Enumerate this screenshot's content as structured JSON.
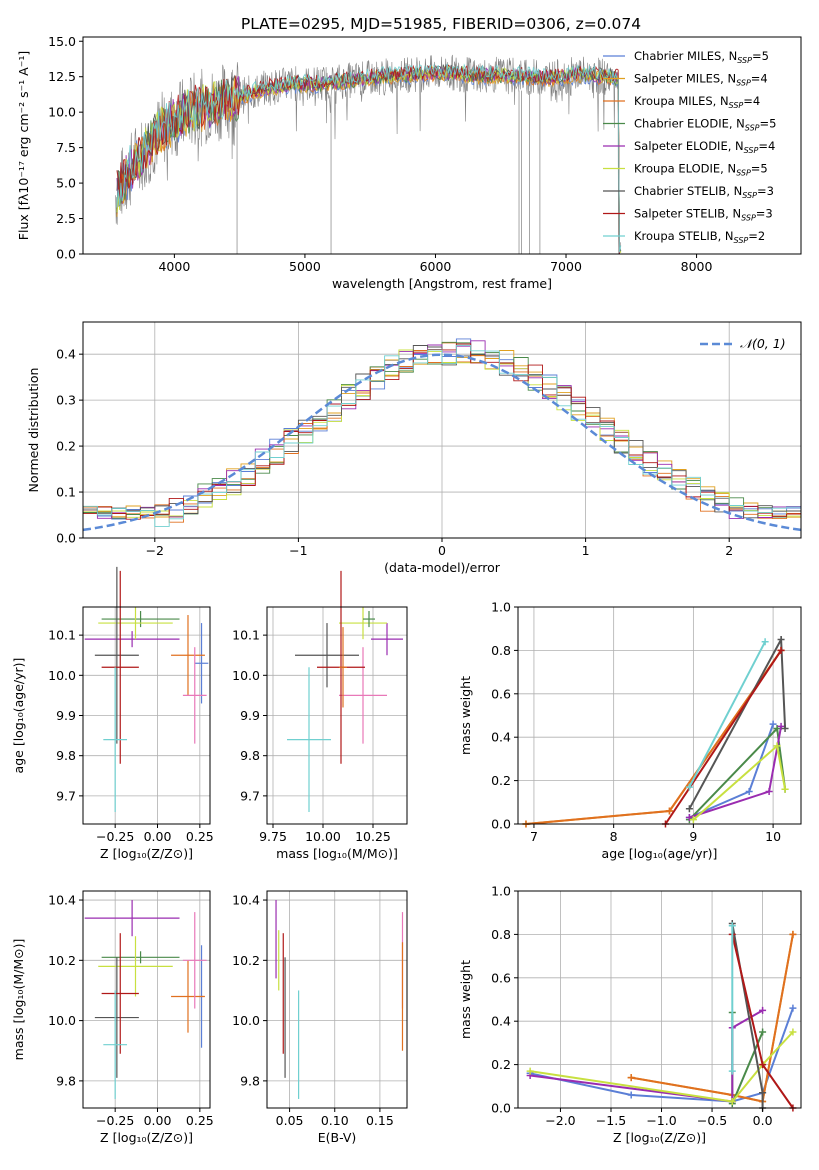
{
  "title": "PLATE=0295, MJD=51985, FIBERID=0306, z=0.074",
  "colors": {
    "Chabrier MILES": "#5b7fd6",
    "Salpeter MILES": "#e0a020",
    "Kroupa MILES": "#e07020",
    "Chabrier ELODIE": "#4a8a4a",
    "Salpeter ELODIE": "#9a2cb0",
    "Kroupa ELODIE": "#c8e040",
    "Chabrier STELIB": "#555555",
    "Salpeter STELIB": "#b01818",
    "Kroupa STELIB": "#70d0d0",
    "Kroupa ELODIE ticks": "#e878b8",
    "data": "#808080",
    "gaussian": "#5b8ad6"
  },
  "chart_data": [
    {
      "id": "spectrum",
      "type": "line",
      "xlabel": "wavelength [Angstrom, rest frame]",
      "ylabel": "Flux [fλ10⁻¹⁷ erg cm⁻² s⁻¹ A⁻¹]",
      "xlim": [
        3300,
        8800
      ],
      "ylim": [
        0,
        15.3
      ],
      "xticks": [
        4000,
        5000,
        6000,
        7000,
        8000
      ],
      "yticks": [
        "0.0",
        "2.5",
        "5.0",
        "7.5",
        "10.0",
        "12.5",
        "15.0"
      ],
      "legend_position": "right",
      "series": [
        {
          "name": "Chabrier MILES, N",
          "sub": "SSP",
          "suffix": "=5"
        },
        {
          "name": "Salpeter MILES, N",
          "sub": "SSP",
          "suffix": "=4"
        },
        {
          "name": "Kroupa MILES, N",
          "sub": "SSP",
          "suffix": "=4"
        },
        {
          "name": "Chabrier ELODIE, N",
          "sub": "SSP",
          "suffix": "=5"
        },
        {
          "name": "Salpeter ELODIE, N",
          "sub": "SSP",
          "suffix": "=4"
        },
        {
          "name": "Kroupa ELODIE, N",
          "sub": "SSP",
          "suffix": "=5"
        },
        {
          "name": "Chabrier STELIB, N",
          "sub": "SSP",
          "suffix": "=3"
        },
        {
          "name": "Salpeter STELIB, N",
          "sub": "SSP",
          "suffix": "=3"
        },
        {
          "name": "Kroupa STELIB, N",
          "sub": "SSP",
          "suffix": "=2"
        }
      ],
      "continuum": {
        "x": [
          3550,
          3700,
          3900,
          4100,
          4300,
          4500,
          4700,
          4900,
          5100,
          5300,
          5500,
          5700,
          5900,
          6100,
          6300,
          6500,
          6700,
          6900,
          7100,
          7300,
          7400
        ],
        "y": [
          4.2,
          6.5,
          8.8,
          10.0,
          10.6,
          11.1,
          11.7,
          12.0,
          12.0,
          12.2,
          12.4,
          12.6,
          12.7,
          12.8,
          12.6,
          12.6,
          12.5,
          12.4,
          12.7,
          12.5,
          12.4
        ]
      }
    },
    {
      "id": "residual-histogram",
      "type": "histogram",
      "xlabel": "(data-model)/error",
      "ylabel": "Normed distribution",
      "xlim": [
        -2.5,
        2.5
      ],
      "ylim": [
        0,
        0.47
      ],
      "xticks": [
        "−2",
        "−1",
        "0",
        "1",
        "2"
      ],
      "yticks": [
        "0.0",
        "0.1",
        "0.2",
        "0.3",
        "0.4"
      ],
      "grid": true,
      "legend": "𝒩(0, 1)",
      "legend_position": "top-right",
      "bin_width": 0.1
    },
    {
      "id": "age-vs-Z",
      "type": "errorbar",
      "xlabel": "Z [log₁₀(Z/Z⊙)]",
      "ylabel": "age [log₁₀(age/yr)]",
      "xlim": [
        -0.44,
        0.31
      ],
      "ylim": [
        9.63,
        10.17
      ],
      "xticks": [
        "−0.25",
        "0.00",
        "0.25"
      ],
      "yticks": [
        "9.7",
        "9.8",
        "9.9",
        "10.0",
        "10.1"
      ]
    },
    {
      "id": "age-vs-mass",
      "type": "errorbar",
      "xlabel": "mass [log₁₀(M/M⊙)]",
      "ylabel": "",
      "xlim": [
        9.72,
        10.42
      ],
      "ylim": [
        9.63,
        10.17
      ],
      "xticks": [
        "9.75",
        "10.00",
        "10.25"
      ],
      "yticks": [
        "9.7",
        "9.8",
        "9.9",
        "10.0",
        "10.1"
      ]
    },
    {
      "id": "weight-vs-age",
      "type": "line",
      "xlabel": "age [log₁₀(age/yr)]",
      "ylabel": "mass weight",
      "xlim": [
        6.8,
        10.35
      ],
      "ylim": [
        0,
        1
      ],
      "xticks": [
        "7",
        "8",
        "9",
        "10"
      ],
      "yticks": [
        "0.0",
        "0.2",
        "0.4",
        "0.6",
        "0.8",
        "1.0"
      ],
      "grid": true,
      "series": [
        {
          "name": "Chabrier MILES",
          "x": [
            8.95,
            9.7,
            10.0
          ],
          "y": [
            0.03,
            0.15,
            0.46
          ]
        },
        {
          "name": "Salpeter MILES",
          "x": [
            6.9,
            8.7,
            10.1
          ],
          "y": [
            0.0,
            0.06,
            0.8
          ]
        },
        {
          "name": "Kroupa MILES",
          "x": [
            6.9,
            8.7,
            10.1
          ],
          "y": [
            0.0,
            0.06,
            0.8
          ]
        },
        {
          "name": "Chabrier ELODIE",
          "x": [
            8.95,
            10.05,
            10.15
          ],
          "y": [
            0.02,
            0.44,
            0.16
          ]
        },
        {
          "name": "Salpeter ELODIE",
          "x": [
            8.95,
            9.95,
            10.1
          ],
          "y": [
            0.03,
            0.15,
            0.45
          ]
        },
        {
          "name": "Kroupa ELODIE",
          "x": [
            9.0,
            10.05,
            10.15
          ],
          "y": [
            0.02,
            0.36,
            0.16
          ]
        },
        {
          "name": "Chabrier STELIB",
          "x": [
            8.95,
            10.1,
            10.15
          ],
          "y": [
            0.07,
            0.85,
            0.44
          ]
        },
        {
          "name": "Salpeter STELIB",
          "x": [
            8.65,
            10.1
          ],
          "y": [
            0.0,
            0.8
          ]
        },
        {
          "name": "Kroupa STELIB",
          "x": [
            8.95,
            9.9
          ],
          "y": [
            0.17,
            0.84
          ]
        }
      ]
    },
    {
      "id": "mass-vs-Z",
      "type": "errorbar",
      "xlabel": "Z [log₁₀(Z/Z⊙)]",
      "ylabel": "mass [log₁₀(M/M⊙)]",
      "xlim": [
        -0.44,
        0.31
      ],
      "ylim": [
        9.71,
        10.43
      ],
      "xticks": [
        "−0.25",
        "0.00",
        "0.25"
      ],
      "yticks": [
        "9.8",
        "10.0",
        "10.2",
        "10.4"
      ]
    },
    {
      "id": "mass-vs-EBV",
      "type": "errorbar",
      "xlabel": "E(B-V)",
      "ylabel": "",
      "xlim": [
        0.025,
        0.18
      ],
      "ylim": [
        9.71,
        10.43
      ],
      "xticks": [
        "0.05",
        "0.10",
        "0.15"
      ],
      "yticks": [
        "9.8",
        "10.0",
        "10.2",
        "10.4"
      ]
    },
    {
      "id": "weight-vs-Z",
      "type": "line",
      "xlabel": "Z [log₁₀(Z/Z⊙)]",
      "ylabel": "mass weight",
      "xlim": [
        -2.42,
        0.38
      ],
      "ylim": [
        0,
        1
      ],
      "xticks": [
        "−2.0",
        "−1.5",
        "−1.0",
        "−0.5",
        "0.0"
      ],
      "yticks": [
        "0.0",
        "0.2",
        "0.4",
        "0.6",
        "0.8",
        "1.0"
      ],
      "grid": true,
      "series": [
        {
          "name": "Chabrier MILES",
          "x": [
            -2.3,
            -1.3,
            -0.3,
            0.0,
            0.3
          ],
          "y": [
            0.16,
            0.06,
            0.03,
            0.07,
            0.46
          ]
        },
        {
          "name": "Salpeter MILES",
          "x": [
            -1.3,
            -0.3,
            0.0,
            0.3
          ],
          "y": [
            0.14,
            0.06,
            0.03,
            0.8
          ]
        },
        {
          "name": "Kroupa MILES",
          "x": [
            -1.3,
            -0.3,
            0.0,
            0.3
          ],
          "y": [
            0.14,
            0.06,
            0.03,
            0.8
          ]
        },
        {
          "name": "Chabrier ELODIE",
          "x": [
            -0.3,
            -0.3,
            0.0
          ],
          "y": [
            0.44,
            0.02,
            0.35
          ]
        },
        {
          "name": "Salpeter ELODIE",
          "x": [
            -2.3,
            -0.3,
            -0.3,
            0.0
          ],
          "y": [
            0.15,
            0.03,
            0.37,
            0.45
          ]
        },
        {
          "name": "Kroupa ELODIE",
          "x": [
            -2.3,
            -0.3,
            0.0,
            0.3
          ],
          "y": [
            0.17,
            0.03,
            0.2,
            0.35
          ]
        },
        {
          "name": "Chabrier STELIB",
          "x": [
            -0.3,
            0.0,
            0.0
          ],
          "y": [
            0.85,
            0.07,
            0.0
          ]
        },
        {
          "name": "Salpeter STELIB",
          "x": [
            -0.3,
            0.0,
            0.3
          ],
          "y": [
            0.8,
            0.2,
            0.0
          ]
        },
        {
          "name": "Kroupa STELIB",
          "x": [
            -0.3,
            -0.3
          ],
          "y": [
            0.84,
            0.17
          ]
        }
      ]
    }
  ]
}
